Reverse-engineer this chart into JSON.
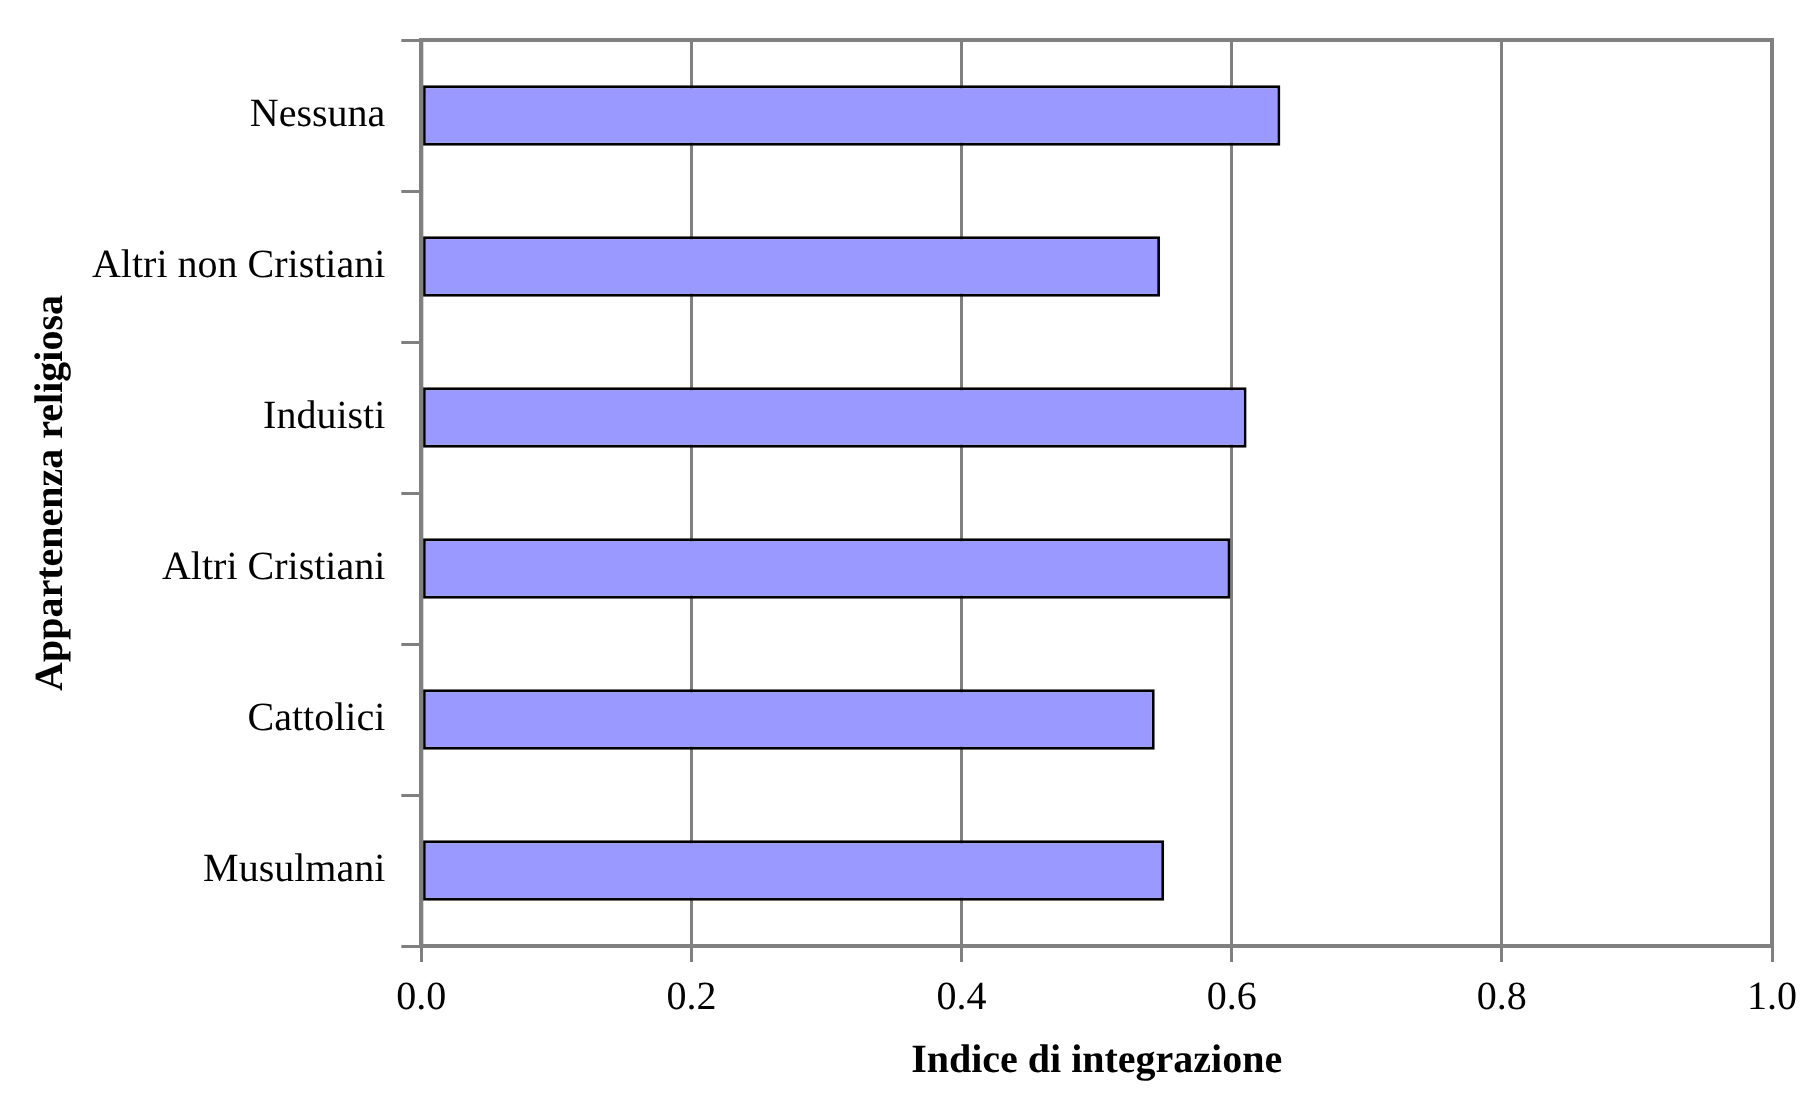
{
  "chart_data": {
    "type": "bar",
    "orientation": "horizontal",
    "xlabel": "Indice di integrazione",
    "ylabel": "Appartenenza religiosa",
    "categories": [
      "Nessuna",
      "Altri non Cristiani",
      "Induisti",
      "Altri Cristiani",
      "Cattolici",
      "Musulmani"
    ],
    "values": [
      0.636,
      0.547,
      0.611,
      0.599,
      0.543,
      0.55
    ],
    "color": "#9999ff",
    "xlim": [
      0,
      1
    ],
    "xticks": [
      {
        "value": 0,
        "label": "0.0"
      },
      {
        "value": 0.2,
        "label": "0.2"
      },
      {
        "value": 0.4,
        "label": "0.4"
      },
      {
        "value": 0.6,
        "label": "0.6"
      },
      {
        "value": 0.8,
        "label": "0.8"
      },
      {
        "value": 1,
        "label": "1.0"
      }
    ],
    "grid": "x",
    "legend": false
  }
}
